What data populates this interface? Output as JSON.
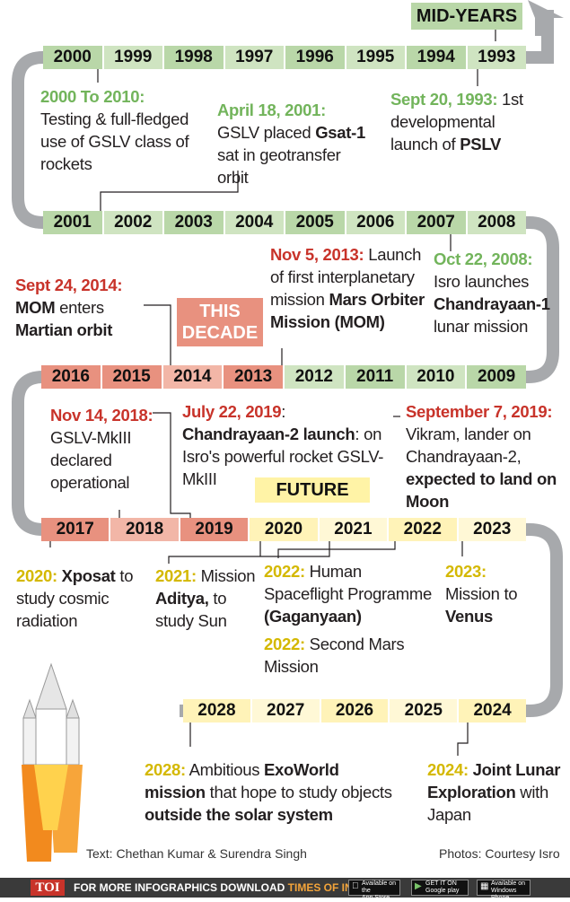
{
  "tags": {
    "mid_years": "MID-YEARS",
    "this_decade": "THIS DECADE",
    "future": "FUTURE"
  },
  "rows": {
    "row1": [
      "2000",
      "1999",
      "1998",
      "1997",
      "1996",
      "1995",
      "1994",
      "1993"
    ],
    "row2": [
      "2001",
      "2002",
      "2003",
      "2004",
      "2005",
      "2006",
      "2007",
      "2008"
    ],
    "row3": [
      "2016",
      "2015",
      "2014",
      "2013",
      "2012",
      "2011",
      "2010",
      "2009"
    ],
    "row4": [
      "2017",
      "2018",
      "2019",
      "2020",
      "2021",
      "2022",
      "2023"
    ],
    "row5": [
      "2028",
      "2027",
      "2026",
      "2025",
      "2024"
    ]
  },
  "events": {
    "e2000": {
      "date": "2000 To 2010:",
      "text": "Testing & full-fledged use of GSLV class of rockets"
    },
    "e2001": {
      "date": "April 18, 2001:",
      "pre": " GSLV placed ",
      "bold": "Gsat-1",
      "post": " sat in geotransfer orbit"
    },
    "e1993": {
      "date": "Sept 20, 1993:",
      "pre": " 1st developmental launch of ",
      "bold": "PSLV"
    },
    "e2013": {
      "date": "Nov 5, 2013:",
      "pre": " Launch of first interplanetary mission ",
      "bold": "Mars Orbiter Mission (MOM)"
    },
    "e2008": {
      "date": "Oct 22, 2008:",
      "pre": " Isro launches ",
      "bold": "Chandrayaan-1",
      "post": " lunar mission"
    },
    "e2014": {
      "date": "Sept 24, 2014:",
      "bold1": "MOM",
      "mid": " enters ",
      "bold2": "Martian orbit"
    },
    "e2018": {
      "date": "Nov 14, 2018:",
      "text": "GSLV-MkIII declared operational"
    },
    "e2019a": {
      "date": "July 22, 2019",
      "colon": ": ",
      "bold": "Chandrayaan-2 launch",
      "post": ": on Isro's powerful rocket GSLV-MkIII"
    },
    "e2019b": {
      "date": "September 7, 2019:",
      "pre": "Vikram, lander on Chandrayaan-2, ",
      "bold": "expected to land on Moon"
    },
    "e2020": {
      "date": "2020:",
      "bold": " Xposat",
      "post": " to study cosmic radiation"
    },
    "e2021": {
      "date": "2021:",
      "pre": " Mission ",
      "bold": "Aditya,",
      "post": " to study Sun"
    },
    "e2022a": {
      "date": "2022:",
      "pre": " Human Spaceflight Programme ",
      "bold": "(Gaganyaan)"
    },
    "e2022b": {
      "date": "2022:",
      "post": " Second Mars Mission"
    },
    "e2023": {
      "date": "2023:",
      "pre": "Mission to ",
      "bold": "Venus"
    },
    "e2028": {
      "date": "2028:",
      "pre": " Ambitious ",
      "bold1": "ExoWorld mission",
      "mid": " that hope to study objects ",
      "bold2": "outside the solar system"
    },
    "e2024": {
      "date": "2024:",
      "bold": " Joint Lunar Exploration",
      "post": " with Japan"
    }
  },
  "credits": {
    "text": "Text: Chethan Kumar & Surendra Singh",
    "photos": "Photos: Courtesy Isro"
  },
  "footer": {
    "brand": "TOI",
    "cta": "FOR MORE  INFOGRAPHICS DOWNLOAD",
    "app": "TIMES OF INDIA APP",
    "store1_small": "Available on the",
    "store1": "App Store",
    "store2_small": "GET IT ON",
    "store2": "Google play",
    "store3_small": "Available on",
    "store3": "Windows Phone"
  },
  "colors": {
    "green_date": "#72b45b",
    "red_date": "#c8332a",
    "yellow_date": "#d4b800",
    "track": "#a7a9ac"
  }
}
